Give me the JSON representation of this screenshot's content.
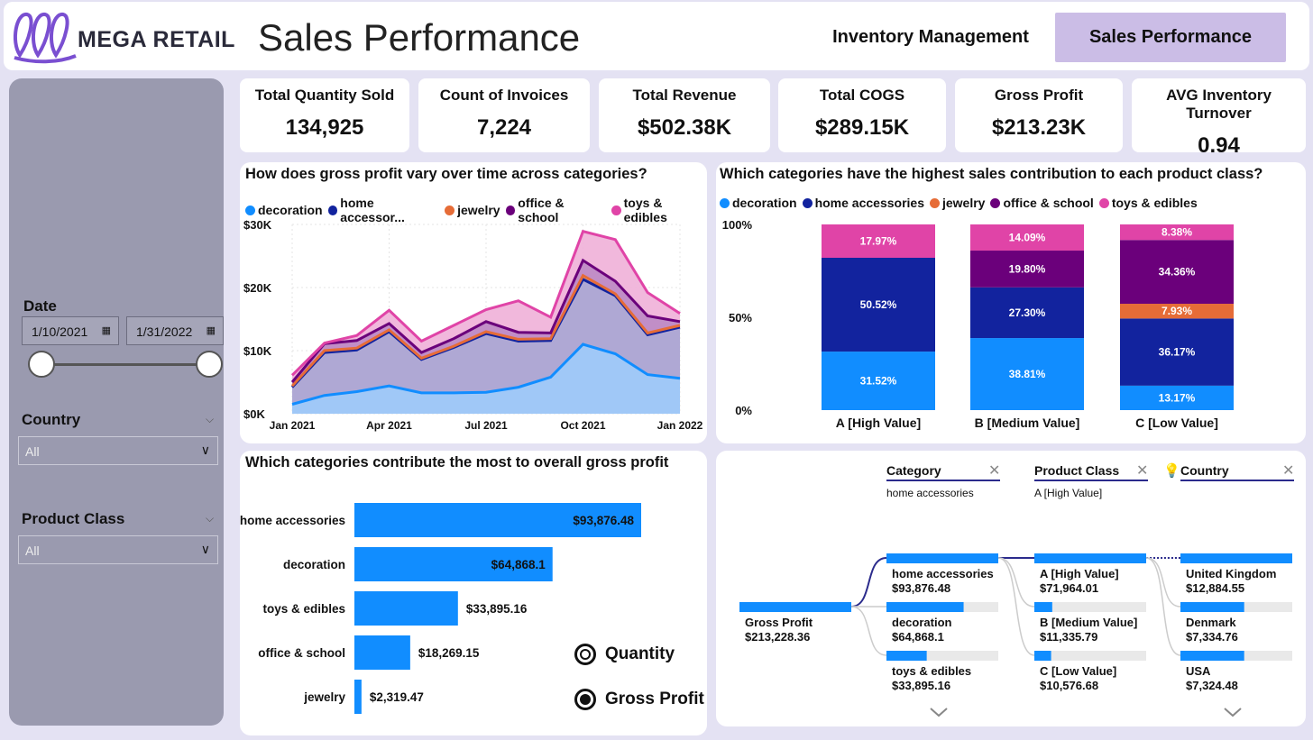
{
  "header": {
    "brand": "MEGA RETAIL",
    "title": "Sales Performance",
    "nav": [
      {
        "label": "Inventory Management",
        "active": false
      },
      {
        "label": "Sales Performance",
        "active": true
      }
    ]
  },
  "sidebar": {
    "date_label": "Date",
    "date_start": "1/10/2021",
    "date_end": "1/31/2022",
    "country_label": "Country",
    "country_value": "All",
    "product_class_label": "Product Class",
    "product_class_value": "All"
  },
  "kpis": [
    {
      "label": "Total Quantity Sold",
      "value": "134,925"
    },
    {
      "label": "Count of Invoices",
      "value": "7,224"
    },
    {
      "label": "Total Revenue",
      "value": "$502.38K"
    },
    {
      "label": "Total COGS",
      "value": "$289.15K"
    },
    {
      "label": "Gross Profit",
      "value": "$213.23K"
    },
    {
      "label": "AVG Inventory Turnover",
      "value": "0.94"
    }
  ],
  "colors": {
    "decoration": "#118dff",
    "home_accessories": "#12239e",
    "jewelry": "#e66c37",
    "office_school": "#6b007b",
    "toys_edibles": "#e044a7"
  },
  "area_chart": {
    "title": "How does gross profit vary over time across categories?",
    "legend": [
      "decoration",
      "home accessor...",
      "jewelry",
      "office & school",
      "toys & edibles"
    ]
  },
  "stacked_chart": {
    "title": "Which categories have the highest sales contribution to each product class?",
    "legend": [
      "decoration",
      "home accessories",
      "jewelry",
      "office & school",
      "toys & edibles"
    ]
  },
  "bar_chart": {
    "title": "Which categories contribute the most to overall gross profit",
    "toggle": [
      {
        "label": "Quantity",
        "selected": false
      },
      {
        "label": "Gross Profit",
        "selected": true
      }
    ]
  },
  "decomp_tree": {
    "levels": [
      {
        "header": "Category",
        "sub": "home accessories"
      },
      {
        "header": "Product Class",
        "sub": "A [High Value]"
      },
      {
        "header": "Country",
        "sub": ""
      }
    ],
    "root": {
      "label": "Gross Profit",
      "value": "$213,228.36"
    },
    "category_nodes": [
      {
        "label": "home accessories",
        "value": "$93,876.48",
        "share": 1.0
      },
      {
        "label": "decoration",
        "value": "$64,868.1",
        "share": 0.69
      },
      {
        "label": "toys & edibles",
        "value": "$33,895.16",
        "share": 0.36
      }
    ],
    "class_nodes": [
      {
        "label": "A [High Value]",
        "value": "$71,964.01",
        "share": 1.0
      },
      {
        "label": "B [Medium Value]",
        "value": "$11,335.79",
        "share": 0.16
      },
      {
        "label": "C [Low Value]",
        "value": "$10,576.68",
        "share": 0.15
      }
    ],
    "country_nodes": [
      {
        "label": "United Kingdom",
        "value": "$12,884.55",
        "share": 1.0
      },
      {
        "label": "Denmark",
        "value": "$7,334.76",
        "share": 0.57
      },
      {
        "label": "USA",
        "value": "$7,324.48",
        "share": 0.57
      }
    ]
  },
  "chart_data": [
    {
      "type": "area",
      "title": "How does gross profit vary over time across categories?",
      "x": [
        "Jan 2021",
        "Feb 2021",
        "Mar 2021",
        "Apr 2021",
        "May 2021",
        "Jun 2021",
        "Jul 2021",
        "Aug 2021",
        "Sep 2021",
        "Oct 2021",
        "Nov 2021",
        "Dec 2021",
        "Jan 2022"
      ],
      "x_ticks": [
        "Jan 2021",
        "Apr 2021",
        "Jul 2021",
        "Oct 2021",
        "Jan 2022"
      ],
      "y_ticks": [
        "$0K",
        "$10K",
        "$20K",
        "$30K"
      ],
      "ylim": [
        0,
        30000
      ],
      "stacked": true,
      "series": [
        {
          "name": "decoration",
          "values": [
            1500,
            2900,
            3500,
            4400,
            3300,
            3300,
            3400,
            4200,
            5800,
            11000,
            9500,
            6200,
            5600
          ]
        },
        {
          "name": "home accessories",
          "values": [
            2700,
            6800,
            6600,
            8600,
            5300,
            7200,
            9300,
            7300,
            5800,
            10300,
            9200,
            6300,
            8100
          ]
        },
        {
          "name": "jewelry",
          "values": [
            200,
            300,
            300,
            300,
            200,
            200,
            300,
            300,
            300,
            600,
            300,
            300,
            300
          ]
        },
        {
          "name": "office & school",
          "values": [
            600,
            1100,
            1200,
            1000,
            900,
            1200,
            1600,
            1100,
            900,
            2400,
            2000,
            2700,
            600
          ]
        },
        {
          "name": "toys & edibles",
          "values": [
            1100,
            100,
            800,
            2100,
            1800,
            2100,
            1900,
            5000,
            2500,
            4600,
            6600,
            3700,
            1300
          ]
        }
      ]
    },
    {
      "type": "bar",
      "stacked": true,
      "percent": true,
      "title": "Which categories have the highest sales contribution to each product class?",
      "categories": [
        "A [High Value]",
        "B [Medium Value]",
        "C [Low Value]"
      ],
      "y_ticks": [
        "0%",
        "50%",
        "100%"
      ],
      "series": [
        {
          "name": "decoration",
          "values": [
            31.52,
            38.81,
            13.17
          ]
        },
        {
          "name": "home accessories",
          "values": [
            50.52,
            27.3,
            36.17
          ]
        },
        {
          "name": "jewelry",
          "values": [
            0,
            0,
            7.93
          ]
        },
        {
          "name": "office & school",
          "values": [
            0,
            19.8,
            34.36
          ]
        },
        {
          "name": "toys & edibles",
          "values": [
            17.97,
            14.09,
            8.38
          ]
        }
      ],
      "labels": [
        [
          "31.52%",
          "38.81%",
          "13.17%"
        ],
        [
          "50.52%",
          "27.30%",
          "36.17%"
        ],
        [
          "",
          "",
          "7.93%"
        ],
        [
          "",
          "19.80%",
          "34.36%"
        ],
        [
          "17.97%",
          "14.09%",
          "8.38%"
        ]
      ]
    },
    {
      "type": "bar",
      "orientation": "horizontal",
      "title": "Which categories contribute the most to overall gross profit",
      "categories": [
        "home accessories",
        "decoration",
        "toys & edibles",
        "office & school",
        "jewelry"
      ],
      "values": [
        93876.48,
        64868.1,
        33895.16,
        18269.15,
        2319.47
      ],
      "labels": [
        "$93,876.48",
        "$64,868.1",
        "$33,895.16",
        "$18,269.15",
        "$2,319.47"
      ]
    }
  ]
}
